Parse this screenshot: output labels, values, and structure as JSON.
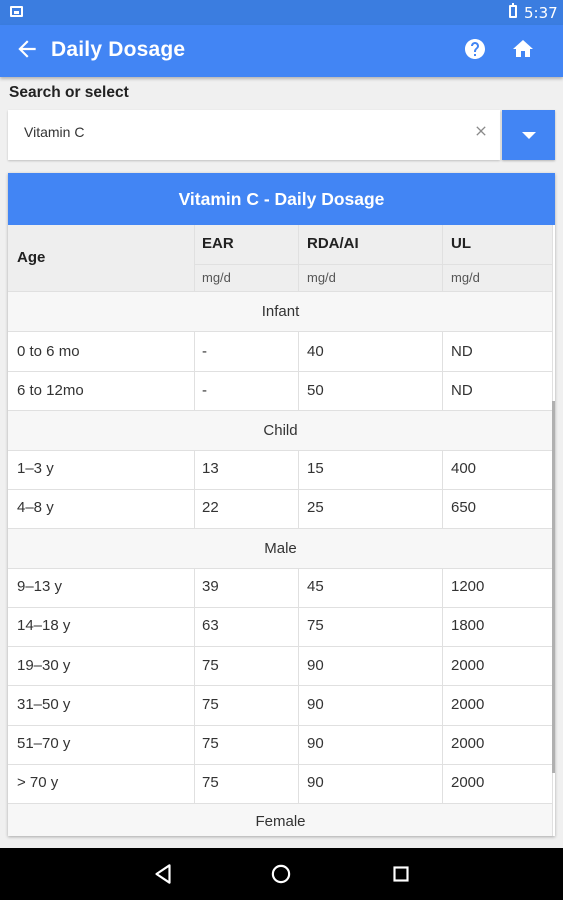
{
  "status_bar": {
    "time": "5:37"
  },
  "app_bar": {
    "title": "Daily Dosage"
  },
  "search": {
    "label": "Search or select",
    "value": "Vitamin C"
  },
  "card": {
    "title": "Vitamin C - Daily Dosage",
    "columns": [
      {
        "name": "Age",
        "unit": ""
      },
      {
        "name": "EAR",
        "unit": "mg/d"
      },
      {
        "name": "RDA/AI",
        "unit": "mg/d"
      },
      {
        "name": "UL",
        "unit": "mg/d"
      }
    ],
    "groups": [
      {
        "label": "Infant",
        "rows": [
          {
            "age": "0 to 6 mo",
            "ear": "-",
            "rda": "40",
            "ul": "ND"
          },
          {
            "age": "6 to 12mo",
            "ear": "-",
            "rda": "50",
            "ul": "ND"
          }
        ]
      },
      {
        "label": "Child",
        "rows": [
          {
            "age": "1–3 y",
            "ear": "13",
            "rda": "15",
            "ul": "400"
          },
          {
            "age": "4–8 y",
            "ear": "22",
            "rda": "25",
            "ul": "650"
          }
        ]
      },
      {
        "label": "Male",
        "rows": [
          {
            "age": "9–13 y",
            "ear": "39",
            "rda": "45",
            "ul": "1200"
          },
          {
            "age": "14–18 y",
            "ear": "63",
            "rda": "75",
            "ul": "1800"
          },
          {
            "age": "19–30 y",
            "ear": "75",
            "rda": "90",
            "ul": "2000"
          },
          {
            "age": "31–50 y",
            "ear": "75",
            "rda": "90",
            "ul": "2000"
          },
          {
            "age": "51–70 y",
            "ear": "75",
            "rda": "90",
            "ul": "2000"
          },
          {
            "age": "> 70 y",
            "ear": "75",
            "rda": "90",
            "ul": "2000"
          }
        ]
      },
      {
        "label": "Female",
        "rows": []
      }
    ]
  },
  "icons": {
    "back": "arrow-back-icon",
    "help": "help-icon",
    "home": "home-icon",
    "clear": "close-icon",
    "dropdown": "caret-down-icon"
  },
  "colors": {
    "primary": "#4285f4",
    "status_bar": "#3b7de0"
  }
}
